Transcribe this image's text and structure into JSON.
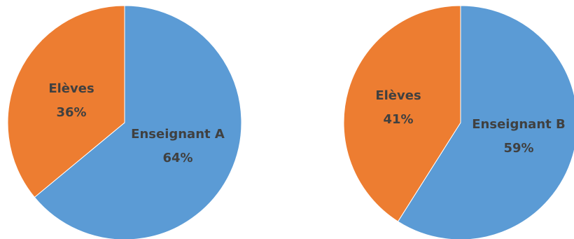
{
  "chart_data": [
    {
      "type": "pie",
      "slices": [
        {
          "label": "Enseignant A",
          "value": 64,
          "value_label": "64%",
          "color": "#5b9bd5"
        },
        {
          "label": "Elèves",
          "value": 36,
          "value_label": "36%",
          "color": "#ed7d31"
        }
      ],
      "start_angle": "12 o'clock",
      "direction": "clockwise",
      "legend": "none"
    },
    {
      "type": "pie",
      "slices": [
        {
          "label": "Enseignant B",
          "value": 59,
          "value_label": "59%",
          "color": "#5b9bd5"
        },
        {
          "label": "Elèves",
          "value": 41,
          "value_label": "41%",
          "color": "#ed7d31"
        }
      ],
      "start_angle": "12 o'clock",
      "direction": "clockwise",
      "legend": "none"
    }
  ]
}
